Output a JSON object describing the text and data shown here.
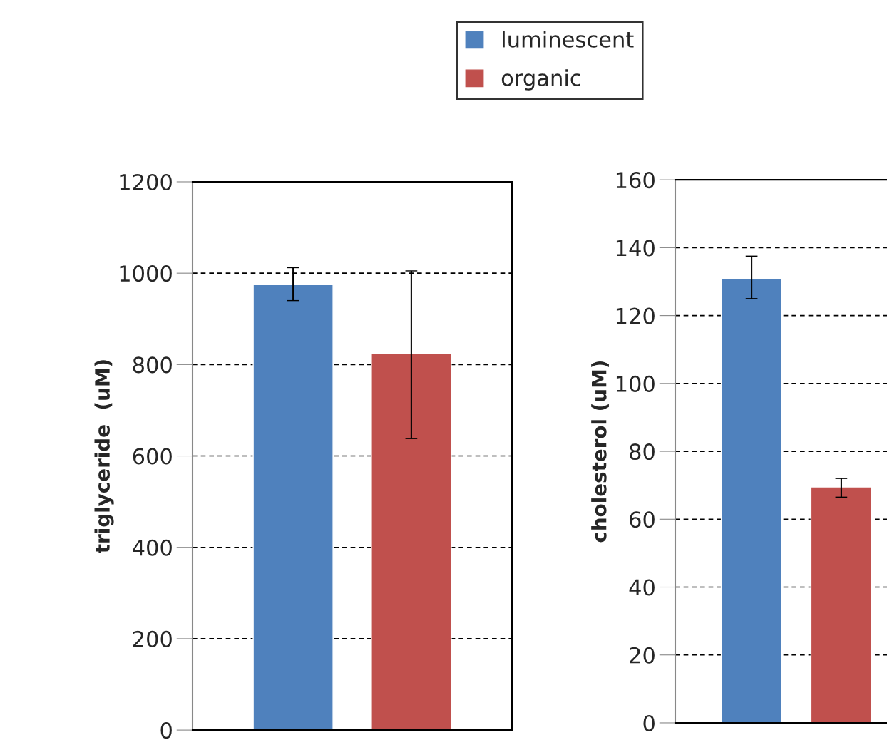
{
  "chart_data": [
    {
      "type": "bar",
      "ylabel": "triglyceride  (uM)",
      "categories": [
        null
      ],
      "ylim": [
        0,
        1200
      ],
      "yticks": [
        0,
        200,
        400,
        600,
        800,
        1000,
        1200
      ],
      "grid": "y",
      "legend": "top",
      "series": [
        {
          "name": "luminescent",
          "color": "#4f81bd",
          "values": [
            975
          ],
          "errors": [
            [
              940,
              1012
            ]
          ]
        },
        {
          "name": "organic",
          "color": "#c0504d",
          "values": [
            825
          ],
          "errors": [
            [
              638,
              1005
            ]
          ]
        }
      ]
    },
    {
      "type": "bar",
      "ylabel": "cholesterol (uM)",
      "categories": [
        null
      ],
      "ylim": [
        0,
        160
      ],
      "yticks": [
        0,
        20,
        40,
        60,
        80,
        100,
        120,
        140,
        160
      ],
      "grid": "y",
      "series": [
        {
          "color": "#4f81bd",
          "values": [
            131
          ],
          "errors": [
            [
              125,
              137.5
            ]
          ]
        },
        {
          "color": "#c0504d",
          "values": [
            69.5
          ],
          "errors": [
            [
              66.5,
              72
            ]
          ]
        }
      ]
    }
  ]
}
